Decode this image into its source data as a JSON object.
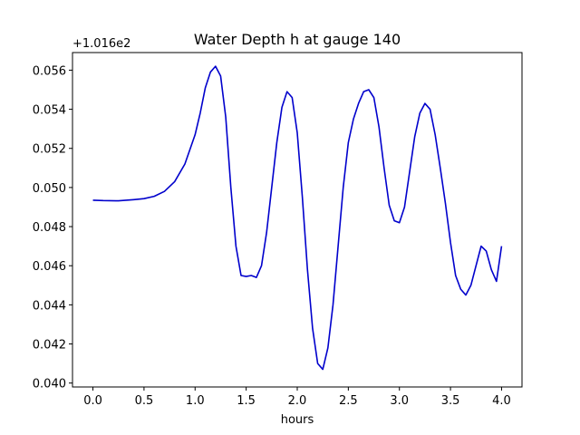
{
  "chart_data": {
    "type": "line",
    "title": "Water Depth h at gauge 140",
    "xlabel": "hours",
    "ylabel": "",
    "offset_label": "+1.016e2",
    "xlim": [
      -0.2,
      4.2
    ],
    "ylim": [
      0.0398,
      0.0569
    ],
    "xticks": [
      0.0,
      0.5,
      1.0,
      1.5,
      2.0,
      2.5,
      3.0,
      3.5,
      4.0
    ],
    "xtick_labels": [
      "0.0",
      "0.5",
      "1.0",
      "1.5",
      "2.0",
      "2.5",
      "3.0",
      "3.5",
      "4.0"
    ],
    "yticks": [
      0.04,
      0.042,
      0.044,
      0.046,
      0.048,
      0.05,
      0.052,
      0.054,
      0.056
    ],
    "ytick_labels": [
      "0.040",
      "0.042",
      "0.044",
      "0.046",
      "0.048",
      "0.050",
      "0.052",
      "0.054",
      "0.056"
    ],
    "grid": false,
    "series": [
      {
        "color": "#0000cc",
        "x": [
          0.0,
          0.1,
          0.25,
          0.4,
          0.5,
          0.6,
          0.7,
          0.8,
          0.9,
          1.0,
          1.05,
          1.1,
          1.15,
          1.2,
          1.25,
          1.3,
          1.35,
          1.4,
          1.45,
          1.5,
          1.55,
          1.6,
          1.65,
          1.7,
          1.75,
          1.8,
          1.85,
          1.9,
          1.95,
          2.0,
          2.05,
          2.1,
          2.15,
          2.2,
          2.25,
          2.3,
          2.35,
          2.4,
          2.45,
          2.5,
          2.55,
          2.6,
          2.65,
          2.7,
          2.75,
          2.8,
          2.85,
          2.9,
          2.95,
          3.0,
          3.05,
          3.1,
          3.15,
          3.2,
          3.25,
          3.3,
          3.35,
          3.4,
          3.45,
          3.5,
          3.55,
          3.6,
          3.65,
          3.7,
          3.75,
          3.8,
          3.85,
          3.9,
          3.95,
          4.0
        ],
        "y": [
          0.04935,
          0.04933,
          0.04932,
          0.04938,
          0.04943,
          0.04955,
          0.0498,
          0.0503,
          0.0512,
          0.0527,
          0.0538,
          0.0551,
          0.0559,
          0.0562,
          0.0557,
          0.0536,
          0.05,
          0.047,
          0.0455,
          0.04545,
          0.0455,
          0.0454,
          0.046,
          0.0477,
          0.05,
          0.0523,
          0.0541,
          0.0549,
          0.0546,
          0.0528,
          0.0495,
          0.0458,
          0.0428,
          0.041,
          0.0407,
          0.0418,
          0.044,
          0.047,
          0.05,
          0.0523,
          0.0535,
          0.0543,
          0.0549,
          0.055,
          0.0546,
          0.0531,
          0.051,
          0.0491,
          0.0483,
          0.0482,
          0.049,
          0.0508,
          0.0526,
          0.0538,
          0.0543,
          0.054,
          0.0527,
          0.051,
          0.0492,
          0.0472,
          0.0455,
          0.0448,
          0.0445,
          0.045,
          0.046,
          0.047,
          0.04675,
          0.0458,
          0.0452,
          0.047
        ]
      }
    ]
  }
}
